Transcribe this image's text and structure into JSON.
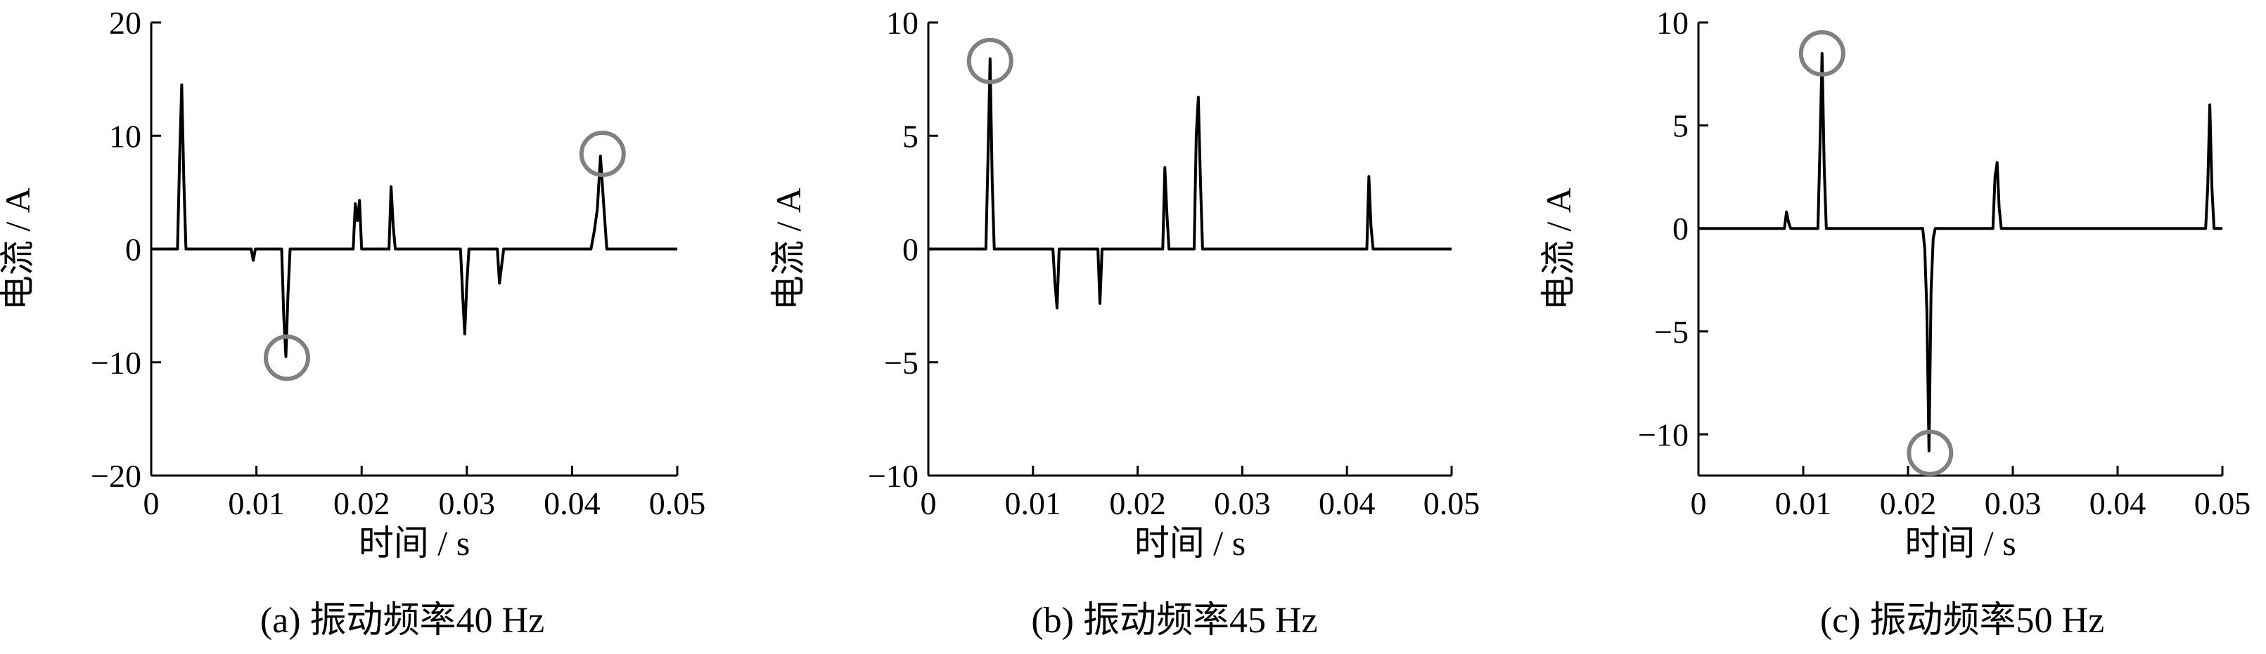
{
  "chart_data": [
    {
      "type": "line",
      "caption": "(a)  振动频率40 Hz",
      "xlabel": "时间 / s",
      "ylabel": "电流 / A",
      "xlim": [
        0,
        0.05
      ],
      "ylim": [
        -20,
        20
      ],
      "xticks": [
        0,
        0.01,
        0.02,
        0.03,
        0.04,
        0.05
      ],
      "xtick_labels": [
        "0",
        "0.01",
        "0.02",
        "0.03",
        "0.04",
        "0.05"
      ],
      "yticks": [
        -20,
        -10,
        0,
        10,
        20
      ],
      "ytick_labels": [
        "−20",
        "−10",
        "0",
        "10",
        "20"
      ],
      "series": [
        {
          "x": [
            0,
            0.0025,
            0.0027,
            0.0029,
            0.0031,
            0.0033,
            0.0095,
            0.0097,
            0.0099,
            0.0124,
            0.0126,
            0.0128,
            0.013,
            0.0132,
            0.0192,
            0.0194,
            0.0196,
            0.0198,
            0.02,
            0.0226,
            0.0228,
            0.023,
            0.0232,
            0.0294,
            0.0296,
            0.0298,
            0.03,
            0.0302,
            0.0329,
            0.0331,
            0.0333,
            0.0335,
            0.0418,
            0.0421,
            0.0424,
            0.0427,
            0.043,
            0.0433,
            0.05
          ],
          "y": [
            0,
            0,
            8,
            14.5,
            6,
            0,
            0,
            -1,
            0,
            0,
            -6,
            -9.5,
            -4,
            0,
            0,
            4,
            2.5,
            4.3,
            0,
            0,
            5.5,
            2,
            0,
            0,
            -4,
            -7.5,
            -3,
            0,
            0,
            -3,
            -1.5,
            0,
            0,
            1.5,
            3.5,
            8.2,
            4,
            0,
            0
          ]
        }
      ],
      "annotations": [
        {
          "type": "circle",
          "x": 0.0129,
          "y": -9.6
        },
        {
          "type": "circle",
          "x": 0.0429,
          "y": 8.4
        }
      ],
      "grid": false
    },
    {
      "type": "line",
      "caption": "(b)  振动频率45 Hz",
      "xlabel": "时间 / s",
      "ylabel": "电流 / A",
      "xlim": [
        0,
        0.05
      ],
      "ylim": [
        -10,
        10
      ],
      "xticks": [
        0,
        0.01,
        0.02,
        0.03,
        0.04,
        0.05
      ],
      "xtick_labels": [
        "0",
        "0.01",
        "0.02",
        "0.03",
        "0.04",
        "0.05"
      ],
      "yticks": [
        -10,
        -5,
        0,
        5,
        10
      ],
      "ytick_labels": [
        "−10",
        "−5",
        "0",
        "5",
        "10"
      ],
      "series": [
        {
          "x": [
            0,
            0.0055,
            0.0057,
            0.0059,
            0.0061,
            0.0063,
            0.0119,
            0.0121,
            0.0123,
            0.0125,
            0.0162,
            0.0164,
            0.0166,
            0.0224,
            0.0226,
            0.0228,
            0.023,
            0.0254,
            0.0256,
            0.0258,
            0.026,
            0.0262,
            0.0419,
            0.0421,
            0.0423,
            0.0425,
            0.05
          ],
          "y": [
            0,
            0,
            4,
            8.4,
            3,
            0,
            0,
            -1.5,
            -2.6,
            0,
            0,
            -2.4,
            0,
            0,
            3.6,
            1.5,
            0,
            0,
            5,
            6.7,
            3,
            0,
            0,
            3.2,
            1,
            0,
            0
          ]
        }
      ],
      "annotations": [
        {
          "type": "circle",
          "x": 0.0059,
          "y": 8.3
        }
      ],
      "grid": false
    },
    {
      "type": "line",
      "caption": "(c)  振动频率50 Hz",
      "xlabel": "时间 / s",
      "ylabel": "电流 / A",
      "xlim": [
        0,
        0.05
      ],
      "ylim": [
        -12,
        10
      ],
      "xticks": [
        0,
        0.01,
        0.02,
        0.03,
        0.04,
        0.05
      ],
      "xtick_labels": [
        "0",
        "0.01",
        "0.02",
        "0.03",
        "0.04",
        "0.05"
      ],
      "yticks": [
        -10,
        -5,
        0,
        5,
        10
      ],
      "ytick_labels": [
        "−10",
        "−5",
        "0",
        "5",
        "10"
      ],
      "series": [
        {
          "x": [
            0,
            0.0082,
            0.0084,
            0.0086,
            0.0088,
            0.0114,
            0.0116,
            0.0118,
            0.012,
            0.0122,
            0.0214,
            0.0216,
            0.0218,
            0.022,
            0.0222,
            0.0224,
            0.0226,
            0.0281,
            0.0283,
            0.0285,
            0.0287,
            0.0289,
            0.0484,
            0.0486,
            0.0488,
            0.049,
            0.0492,
            0.05
          ],
          "y": [
            0,
            0,
            0.8,
            0.3,
            0,
            0,
            4,
            8.5,
            3,
            0,
            0,
            -1,
            -4,
            -10.8,
            -3,
            -0.5,
            0,
            0,
            2.5,
            3.2,
            1,
            0,
            0,
            2,
            6,
            2,
            0,
            0
          ]
        }
      ],
      "annotations": [
        {
          "type": "circle",
          "x": 0.0118,
          "y": 8.5
        },
        {
          "type": "circle",
          "x": 0.0221,
          "y": -10.9
        }
      ],
      "grid": false
    }
  ]
}
